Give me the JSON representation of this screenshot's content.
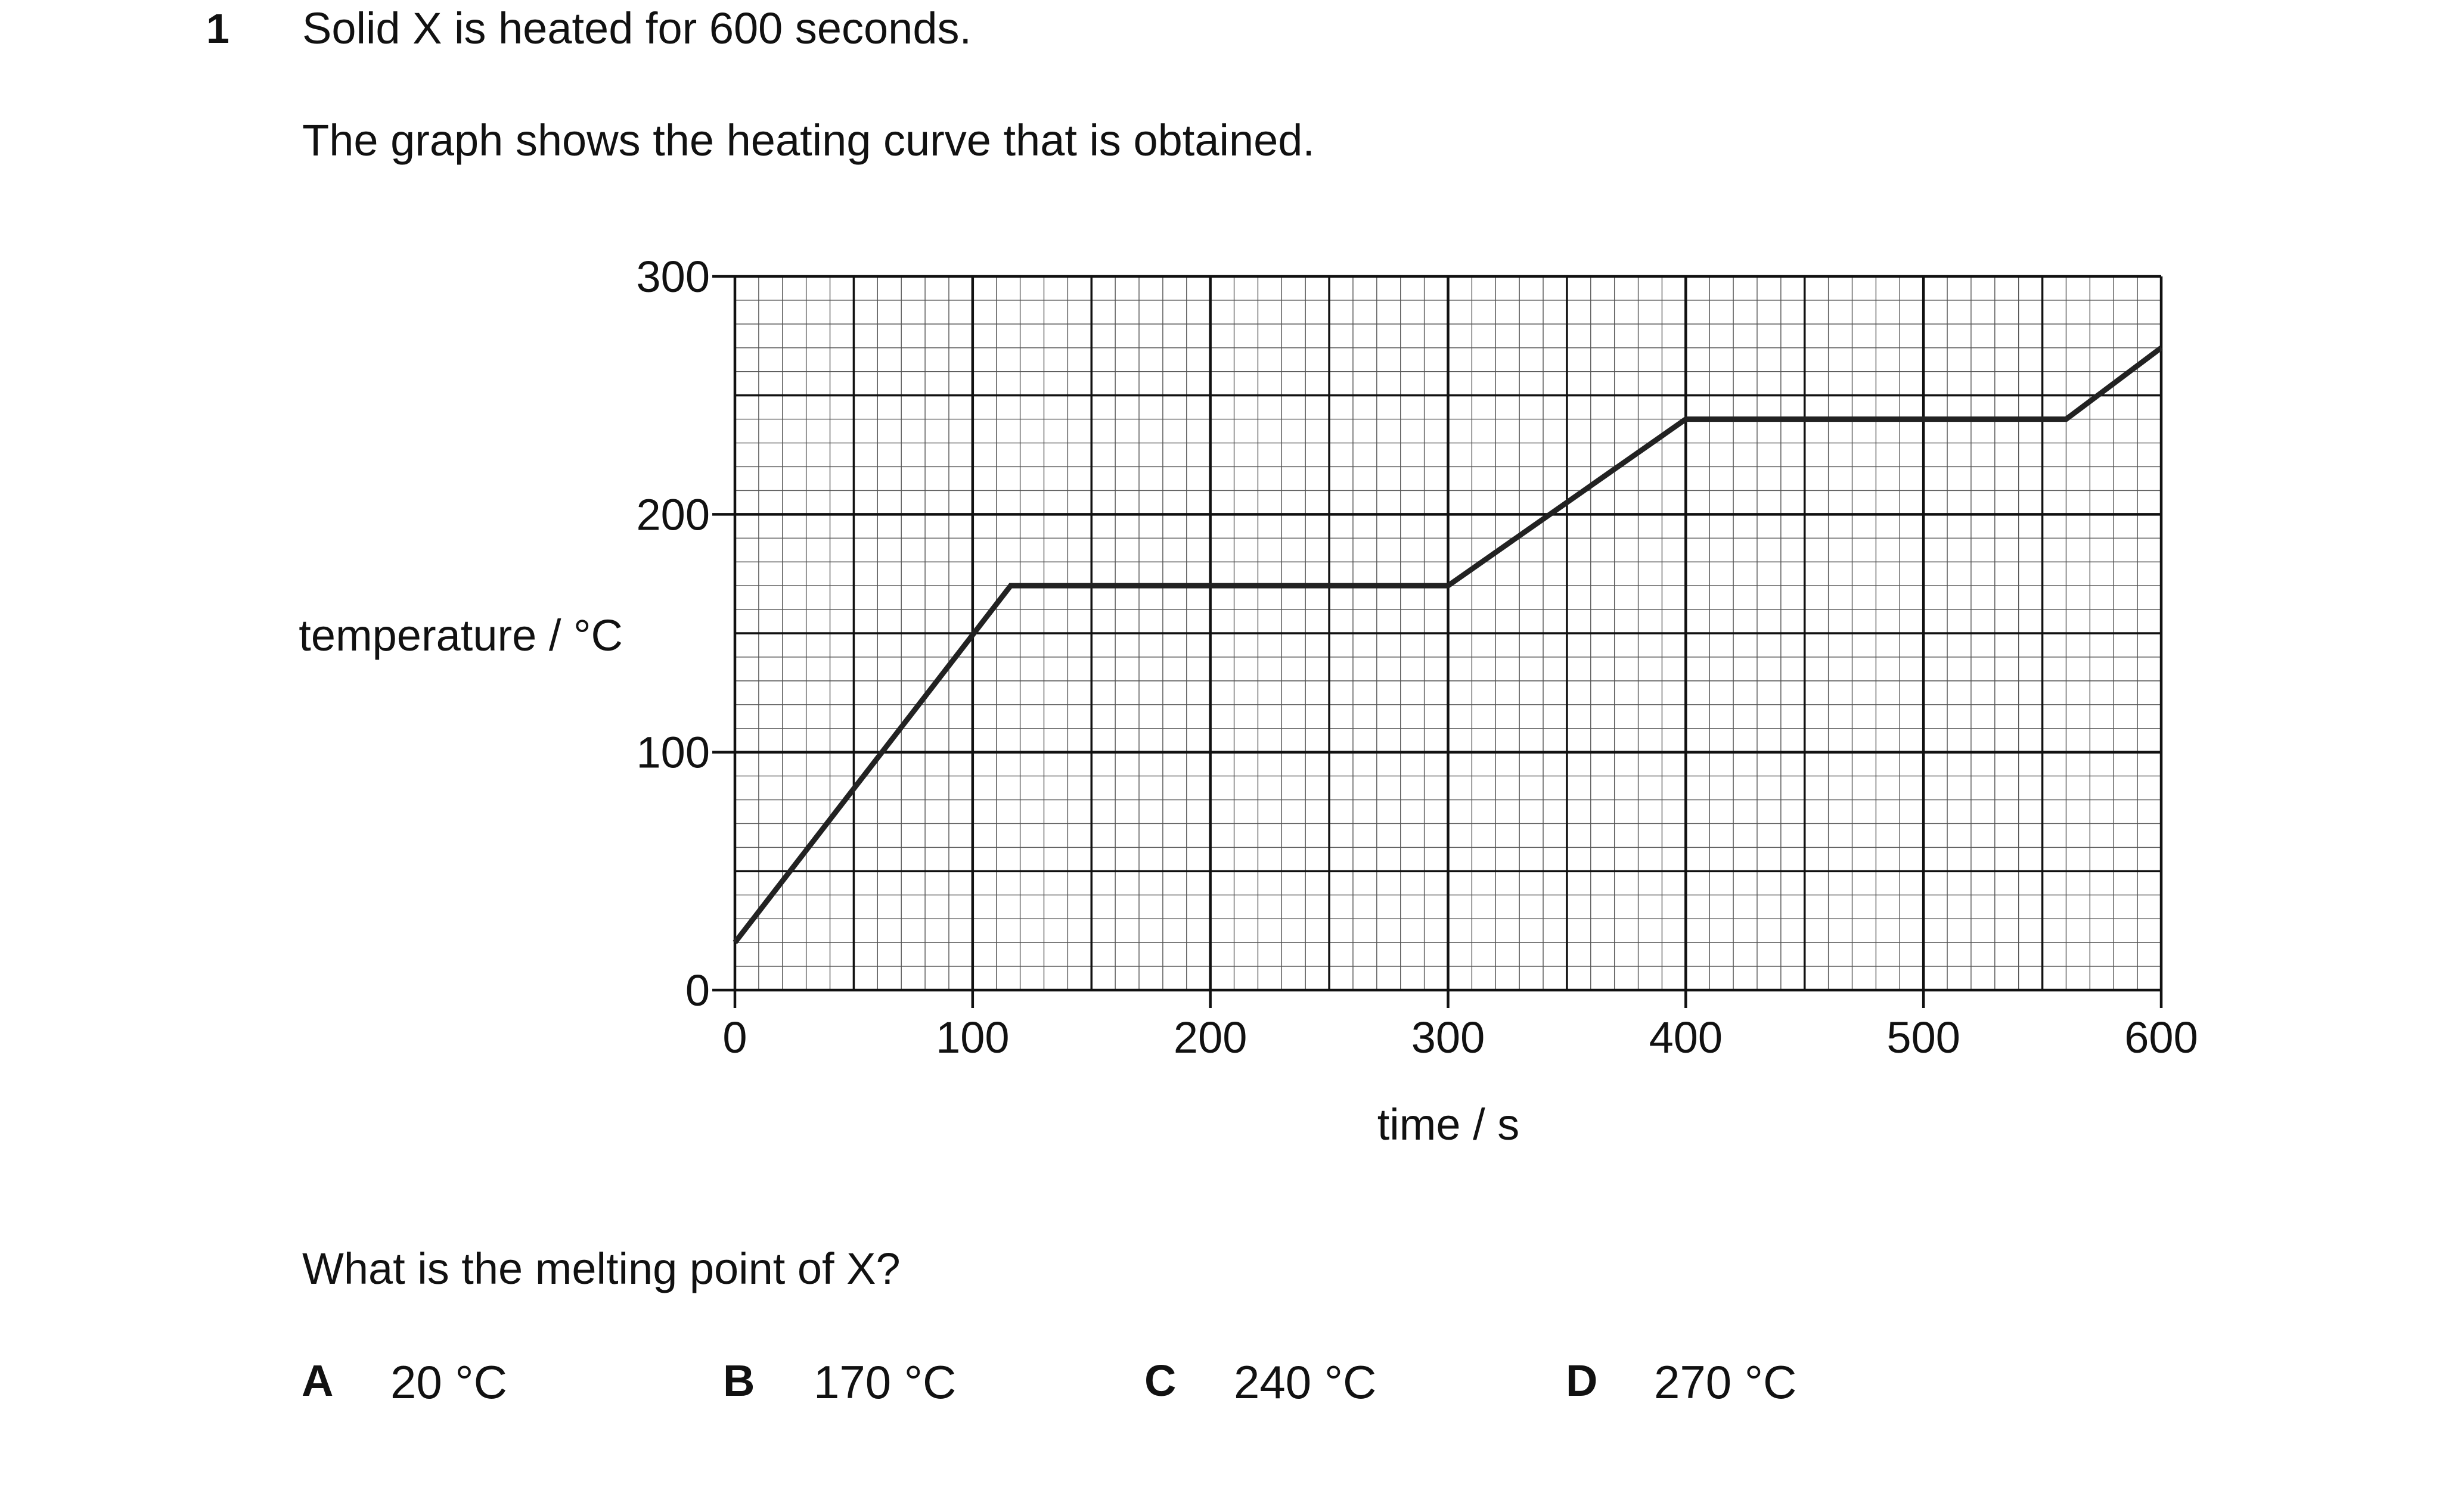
{
  "question": {
    "number": "1",
    "line1": "Solid X is heated for 600 seconds.",
    "line2": "The graph shows the heating curve that is obtained.",
    "prompt": "What is the melting point of X?"
  },
  "options": [
    {
      "letter": "A",
      "text": "20 °C"
    },
    {
      "letter": "B",
      "text": "170 °C"
    },
    {
      "letter": "C",
      "text": "240 °C"
    },
    {
      "letter": "D",
      "text": "270 °C"
    }
  ],
  "chart_data": {
    "type": "line",
    "title": "",
    "xlabel": "time / s",
    "ylabel": "temperature / °C",
    "xlim": [
      0,
      600
    ],
    "ylim": [
      0,
      300
    ],
    "x_ticks": [
      0,
      100,
      200,
      300,
      400,
      500,
      600
    ],
    "y_ticks": [
      0,
      100,
      200,
      300
    ],
    "x_tick_labels": [
      "0",
      "100",
      "200",
      "300",
      "400",
      "500",
      "600"
    ],
    "y_tick_labels": [
      "0",
      "100",
      "200",
      "300"
    ],
    "grid": true,
    "series": [
      {
        "x": [
          0,
          116,
          300,
          400,
          560,
          600
        ],
        "y": [
          20,
          170,
          170,
          240,
          240,
          270
        ]
      }
    ],
    "colors": {
      "line": "#222222",
      "grid_major": "#111111",
      "grid_minor": "#555555"
    }
  }
}
